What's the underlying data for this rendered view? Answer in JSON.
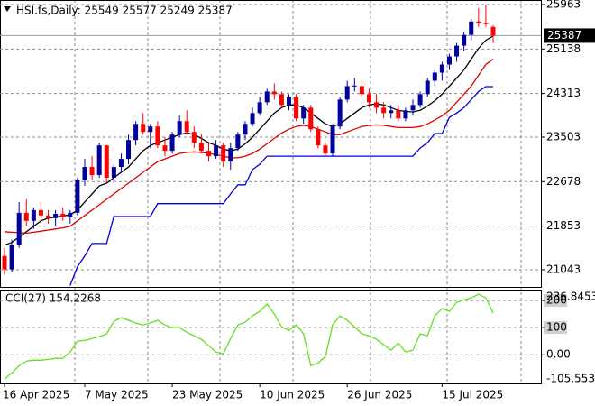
{
  "chart_data": [
    {
      "type": "candlestick",
      "title": "HSI.fs,Daily: 25549 25577 25249 25387",
      "categories": [
        "16 Apr 2025",
        null,
        null,
        null,
        null,
        null,
        null,
        null,
        null,
        null,
        null,
        "7 May 2025",
        null,
        null,
        null,
        null,
        null,
        null,
        null,
        null,
        null,
        null,
        null,
        "23 May 2025",
        null,
        null,
        null,
        null,
        null,
        null,
        null,
        null,
        null,
        null,
        null,
        "10 Jun 2025",
        null,
        null,
        null,
        null,
        null,
        null,
        null,
        null,
        null,
        null,
        null,
        "26 Jun 2025",
        null,
        null,
        null,
        null,
        null,
        null,
        null,
        null,
        null,
        null,
        null,
        null,
        "15 Jul 2025",
        null,
        null,
        null,
        null,
        null,
        null,
        null
      ],
      "open": [
        21300,
        21050,
        21500,
        22100,
        21950,
        22150,
        22050,
        22000,
        22080,
        22020,
        22100,
        22700,
        22950,
        22800,
        23350,
        22750,
        22950,
        23100,
        23450,
        23750,
        23600,
        23700,
        23350,
        23250,
        23550,
        23800,
        23600,
        23400,
        23250,
        23150,
        23350,
        23050,
        23300,
        23550,
        23750,
        23950,
        24150,
        24350,
        24300,
        24100,
        24250,
        23850,
        24050,
        23650,
        23350,
        23200,
        23700,
        24200,
        24450,
        24450,
        24300,
        24150,
        24050,
        23950,
        24000,
        23850,
        24000,
        24100,
        24300,
        24550,
        24700,
        24850,
        25000,
        25200,
        25400,
        25650,
        25620,
        25549
      ],
      "high": [
        21450,
        21600,
        22300,
        22350,
        22200,
        22300,
        22150,
        22150,
        22200,
        22150,
        22750,
        23100,
        23150,
        23400,
        23350,
        23000,
        23200,
        23550,
        23800,
        23950,
        23750,
        23800,
        23500,
        23600,
        23900,
        24000,
        23700,
        23550,
        23400,
        23450,
        23400,
        23400,
        23600,
        23800,
        24050,
        24250,
        24400,
        24500,
        24350,
        24300,
        24300,
        24100,
        24100,
        23700,
        23400,
        23750,
        24250,
        24550,
        24600,
        24500,
        24400,
        24300,
        24150,
        24100,
        24100,
        24050,
        24200,
        24350,
        24600,
        24750,
        24900,
        25050,
        25250,
        25450,
        25700,
        25900,
        25960,
        25577
      ],
      "low": [
        20950,
        21000,
        21450,
        21850,
        21800,
        21950,
        21900,
        21850,
        21950,
        21900,
        22050,
        22600,
        22700,
        22750,
        22650,
        22650,
        22850,
        23000,
        23350,
        23550,
        23300,
        23300,
        23150,
        23200,
        23500,
        23550,
        23300,
        23200,
        23050,
        23100,
        22950,
        22900,
        23250,
        23450,
        23700,
        23900,
        24100,
        24200,
        24050,
        24000,
        23800,
        23750,
        23600,
        23300,
        23150,
        23150,
        23650,
        24150,
        24350,
        24250,
        24050,
        23950,
        23850,
        23850,
        23800,
        23800,
        23900,
        24050,
        24250,
        24450,
        24550,
        24750,
        24900,
        25100,
        25300,
        25550,
        25550,
        25249
      ],
      "close": [
        21050,
        21500,
        22100,
        21950,
        22150,
        22050,
        22000,
        22080,
        22020,
        22100,
        22700,
        22950,
        22800,
        23350,
        22750,
        22950,
        23100,
        23450,
        23750,
        23600,
        23700,
        23350,
        23250,
        23550,
        23800,
        23600,
        23400,
        23250,
        23150,
        23350,
        23050,
        23300,
        23550,
        23750,
        23950,
        24150,
        24350,
        24300,
        24100,
        24250,
        23850,
        24050,
        23650,
        23350,
        23200,
        23700,
        24200,
        24450,
        24460,
        24300,
        24150,
        24050,
        23950,
        24000,
        23850,
        24000,
        24100,
        24300,
        24550,
        24700,
        24850,
        25000,
        25200,
        25400,
        25650,
        25620,
        25600,
        25387
      ],
      "up_color": "#00009c",
      "down_color": "#ff0000",
      "lines": [
        {
          "color": "#000000",
          "values": [
            21500,
            21550,
            21650,
            21750,
            21850,
            21950,
            22000,
            22020,
            22040,
            22060,
            22150,
            22300,
            22450,
            22600,
            22650,
            22750,
            22850,
            22950,
            23100,
            23250,
            23350,
            23400,
            23450,
            23500,
            23550,
            23580,
            23550,
            23480,
            23400,
            23350,
            23280,
            23250,
            23280,
            23380,
            23500,
            23650,
            23800,
            23950,
            24050,
            24100,
            24100,
            24050,
            23950,
            23850,
            23750,
            23700,
            23750,
            23850,
            23950,
            24050,
            24100,
            24120,
            24100,
            24050,
            24000,
            23980,
            23970,
            24000,
            24080,
            24180,
            24300,
            24450,
            24600,
            24750,
            24950,
            25150,
            25300,
            25380
          ]
        },
        {
          "color": "#e00000",
          "values": [
            21750,
            21740,
            21730,
            21720,
            21740,
            21760,
            21780,
            21800,
            21820,
            21850,
            21950,
            22050,
            22150,
            22250,
            22350,
            22450,
            22550,
            22650,
            22750,
            22850,
            22950,
            23050,
            23100,
            23150,
            23200,
            23220,
            23230,
            23220,
            23200,
            23180,
            23150,
            23120,
            23120,
            23150,
            23200,
            23280,
            23380,
            23480,
            23580,
            23650,
            23700,
            23720,
            23700,
            23650,
            23600,
            23550,
            23550,
            23600,
            23650,
            23700,
            23720,
            23730,
            23720,
            23700,
            23680,
            23680,
            23680,
            23700,
            23750,
            23820,
            23900,
            24000,
            24150,
            24300,
            24450,
            24650,
            24850,
            24950
          ]
        },
        {
          "color": "#0000dd",
          "values": [
            null,
            null,
            null,
            null,
            null,
            null,
            null,
            null,
            null,
            20750,
            21100,
            21300,
            21530,
            21530,
            21530,
            22030,
            22030,
            22030,
            22030,
            22030,
            22030,
            22270,
            22270,
            22270,
            22270,
            22270,
            22270,
            22270,
            22270,
            22270,
            22270,
            22450,
            22620,
            22620,
            22900,
            23000,
            23150,
            23150,
            23150,
            23150,
            23150,
            23150,
            23150,
            23150,
            23150,
            23150,
            23150,
            23150,
            23150,
            23150,
            23150,
            23150,
            23150,
            23150,
            23150,
            23150,
            23150,
            23300,
            23400,
            23570,
            23570,
            23870,
            23950,
            24050,
            24200,
            24350,
            24440,
            24440
          ]
        }
      ],
      "ylim": [
        20725,
        26047
      ],
      "yticks": [
        21043,
        21853,
        22678,
        23503,
        24313,
        25138,
        25963
      ],
      "grid": true
    },
    {
      "type": "line",
      "title": "CCI(27) 154.2268",
      "series": [
        {
          "color": "#66e01e",
          "values": [
            -90,
            -67,
            -40,
            -23,
            -20,
            -20,
            -17,
            -13,
            -13,
            10,
            50,
            53,
            60,
            67,
            77,
            123,
            137,
            127,
            117,
            110,
            117,
            127,
            110,
            100,
            100,
            83,
            70,
            57,
            33,
            10,
            3,
            60,
            110,
            120,
            143,
            160,
            187,
            150,
            103,
            90,
            110,
            77,
            -40,
            -30,
            -7,
            110,
            143,
            127,
            103,
            77,
            70,
            57,
            37,
            17,
            43,
            10,
            17,
            77,
            70,
            143,
            170,
            160,
            193,
            203,
            210,
            223,
            210,
            154.2268
          ]
        }
      ],
      "ylim": [
        -105.5538,
        236.8453
      ],
      "yticks": [
        {
          "value": 0,
          "label": "0.00"
        },
        100,
        200
      ],
      "grid": true
    }
  ]
}
